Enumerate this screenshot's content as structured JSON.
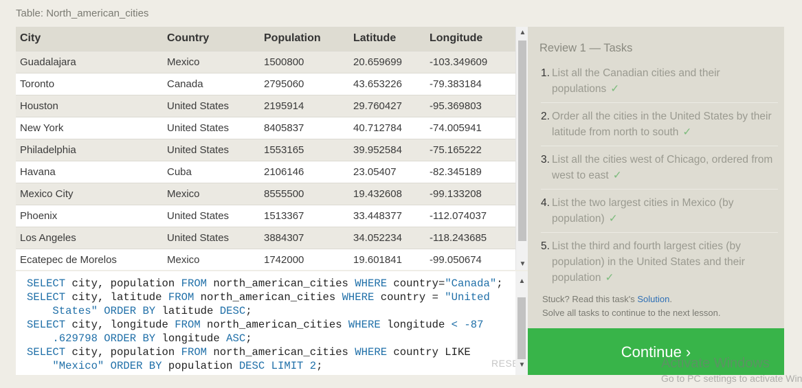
{
  "caption": "Table: North_american_cities",
  "table": {
    "headers": [
      "City",
      "Country",
      "Population",
      "Latitude",
      "Longitude"
    ],
    "rows": [
      [
        "Guadalajara",
        "Mexico",
        "1500800",
        "20.659699",
        "-103.349609"
      ],
      [
        "Toronto",
        "Canada",
        "2795060",
        "43.653226",
        "-79.383184"
      ],
      [
        "Houston",
        "United States",
        "2195914",
        "29.760427",
        "-95.369803"
      ],
      [
        "New York",
        "United States",
        "8405837",
        "40.712784",
        "-74.005941"
      ],
      [
        "Philadelphia",
        "United States",
        "1553165",
        "39.952584",
        "-75.165222"
      ],
      [
        "Havana",
        "Cuba",
        "2106146",
        "23.05407",
        "-82.345189"
      ],
      [
        "Mexico City",
        "Mexico",
        "8555500",
        "19.432608",
        "-99.133208"
      ],
      [
        "Phoenix",
        "United States",
        "1513367",
        "33.448377",
        "-112.074037"
      ],
      [
        "Los Angeles",
        "United States",
        "3884307",
        "34.052234",
        "-118.243685"
      ],
      [
        "Ecatepec de Morelos",
        "Mexico",
        "1742000",
        "19.601841",
        "-99.050674"
      ]
    ]
  },
  "editor": {
    "code_lines": [
      [
        [
          "k",
          "SELECT"
        ],
        [
          "t",
          " city, population "
        ],
        [
          "k",
          "FROM"
        ],
        [
          "t",
          " north_american_cities "
        ],
        [
          "k",
          "WHERE"
        ],
        [
          "t",
          " country="
        ],
        [
          "s",
          "\"Canada\""
        ],
        [
          "t",
          ";"
        ]
      ],
      [
        [
          "k",
          "SELECT"
        ],
        [
          "t",
          " city, latitude "
        ],
        [
          "k",
          "FROM"
        ],
        [
          "t",
          " north_american_cities "
        ],
        [
          "k",
          "WHERE"
        ],
        [
          "t",
          " country = "
        ],
        [
          "s",
          "\"United"
        ]
      ],
      [
        [
          "s",
          "    States\""
        ],
        [
          "t",
          " "
        ],
        [
          "k",
          "ORDER BY"
        ],
        [
          "t",
          " latitude "
        ],
        [
          "k",
          "DESC"
        ],
        [
          "t",
          ";"
        ]
      ],
      [
        [
          "k",
          "SELECT"
        ],
        [
          "t",
          " city, longitude "
        ],
        [
          "k",
          "FROM"
        ],
        [
          "t",
          " north_american_cities "
        ],
        [
          "k",
          "WHERE"
        ],
        [
          "t",
          " longitude "
        ],
        [
          "k",
          "<"
        ],
        [
          "t",
          " "
        ],
        [
          "k",
          "-87"
        ]
      ],
      [
        [
          "k",
          "    .629798"
        ],
        [
          "t",
          " "
        ],
        [
          "k",
          "ORDER BY"
        ],
        [
          "t",
          " longitude "
        ],
        [
          "k",
          "ASC"
        ],
        [
          "t",
          ";"
        ]
      ],
      [
        [
          "k",
          "SELECT"
        ],
        [
          "t",
          " city, population "
        ],
        [
          "k",
          "FROM"
        ],
        [
          "t",
          " north_american_cities "
        ],
        [
          "k",
          "WHERE"
        ],
        [
          "t",
          " country LIKE"
        ]
      ],
      [
        [
          "s",
          "    \"Mexico\""
        ],
        [
          "t",
          " "
        ],
        [
          "k",
          "ORDER BY"
        ],
        [
          "t",
          " population "
        ],
        [
          "k",
          "DESC"
        ],
        [
          "t",
          " "
        ],
        [
          "k",
          "LIMIT"
        ],
        [
          "t",
          " "
        ],
        [
          "k",
          "2"
        ],
        [
          "t",
          ";"
        ]
      ]
    ],
    "reset_label": "RESET"
  },
  "tasks": {
    "title": "Review 1 — Tasks",
    "items": [
      {
        "num": "1.",
        "text": "List all the Canadian cities and their populations"
      },
      {
        "num": "2.",
        "text": "Order all the cities in the United States by their latitude from north to south"
      },
      {
        "num": "3.",
        "text": "List all the cities west of Chicago, ordered from west to east"
      },
      {
        "num": "4.",
        "text": "List the two largest cities in Mexico (by population)"
      },
      {
        "num": "5.",
        "text": "List the third and fourth largest cities (by population) in the United States and their population"
      }
    ],
    "check": "✓",
    "stuck_text": "Stuck? Read this task's ",
    "stuck_link": "Solution",
    "stuck_end": ".",
    "solve_text": "Solve all tasks to continue to the next lesson."
  },
  "continue_label": "Continue ›",
  "watermark": {
    "line1": "Activate Windows",
    "line2": "Go to PC settings to activate Windows."
  },
  "colors": {
    "continue_green": "#38b449",
    "keyword_blue": "#1f6fa8",
    "link_blue": "#2e6fb5"
  }
}
